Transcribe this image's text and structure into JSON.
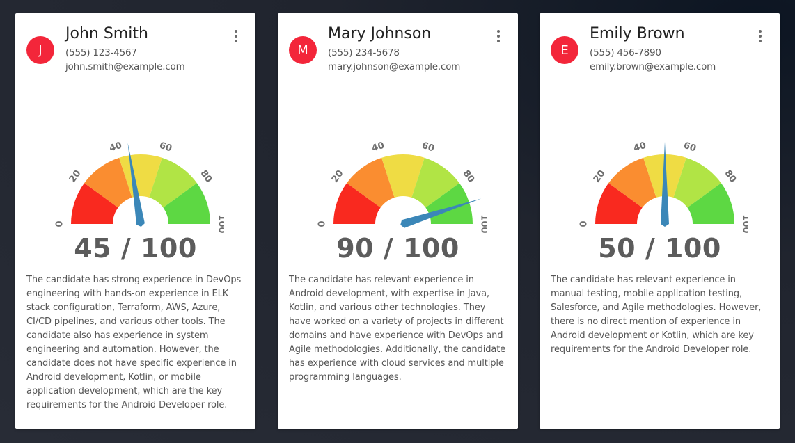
{
  "gauge": {
    "min": 0,
    "max": 100,
    "tick_labels": [
      "0",
      "20",
      "40",
      "60",
      "80",
      "100"
    ],
    "segment_colors": [
      "#f9291f",
      "#fa8d30",
      "#efdc44",
      "#b1e445",
      "#5dd843"
    ],
    "needle_color": "#3b87b8"
  },
  "candidates": [
    {
      "initial": "J",
      "name": "John Smith",
      "phone": "(555) 123-4567",
      "email": "john.smith@example.com",
      "score": 45,
      "score_text": "45 / 100",
      "description": "The candidate has strong experience in DevOps engineering with hands-on experience in ELK stack configuration, Terraform, AWS, Azure, CI/CD pipelines, and various other tools. The candidate also has experience in system engineering and automation. However, the candidate does not have specific experience in Android development, Kotlin, or mobile application development, which are the key requirements for the Android Developer role."
    },
    {
      "initial": "M",
      "name": "Mary Johnson",
      "phone": "(555) 234-5678",
      "email": "mary.johnson@example.com",
      "score": 90,
      "score_text": "90 / 100",
      "description": "The candidate has relevant experience in Android development, with expertise in Java, Kotlin, and various other technologies. They have worked on a variety of projects in different domains and have experience with DevOps and Agile methodologies. Additionally, the candidate has experience with cloud services and multiple programming languages."
    },
    {
      "initial": "E",
      "name": "Emily Brown",
      "phone": "(555) 456-7890",
      "email": "emily.brown@example.com",
      "score": 50,
      "score_text": "50 / 100",
      "description": "The candidate has relevant experience in manual testing, mobile application testing, Salesforce, and Agile methodologies. However, there is no direct mention of experience in Android development or Kotlin, which are key requirements for the Android Developer role."
    }
  ]
}
